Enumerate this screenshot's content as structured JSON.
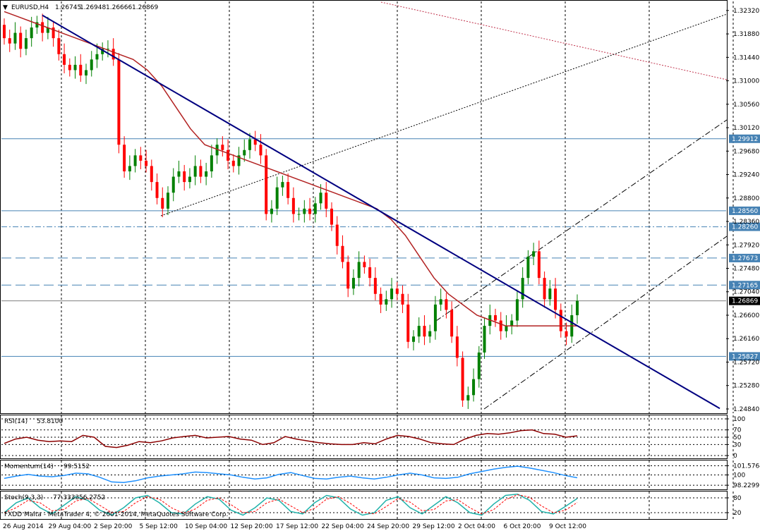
{
  "chart_data": [
    {
      "type": "candlestick",
      "header": {
        "arrow": "▼",
        "symbol": "EURUSD,H4",
        "ohlc": [
          "1.26745",
          "1.26948",
          "1.26666",
          "1.26869"
        ]
      },
      "ylim": [
        1.2476,
        1.3249
      ],
      "y_ticks": [
        "1.32320",
        "1.31880",
        "1.31440",
        "1.31000",
        "1.30560",
        "1.30120",
        "1.29680",
        "1.29240",
        "1.28800",
        "1.28360",
        "1.27920",
        "1.27480",
        "1.27040",
        "1.26600",
        "1.26160",
        "1.25720",
        "1.25280",
        "1.24840"
      ],
      "x_ticks": [
        "26 Aug 2014",
        "29 Aug 04:00",
        "2 Sep 20:00",
        "5 Sep 12:00",
        "10 Sep 04:00",
        "12 Sep 20:00",
        "17 Sep 12:00",
        "22 Sep 04:00",
        "24 Sep 20:00",
        "29 Sep 12:00",
        "2 Oct 04:00",
        "6 Oct 20:00",
        "9 Oct 12:00"
      ],
      "current_price": "1.26869",
      "horizontal_levels": [
        {
          "value": "1.29912",
          "style": "solid"
        },
        {
          "value": "1.28560",
          "style": "solid"
        },
        {
          "value": "1.28260",
          "style": "dashdot"
        },
        {
          "value": "1.27673",
          "style": "dashed"
        },
        {
          "value": "1.27165",
          "style": "dashed"
        },
        {
          "value": "1.25827",
          "style": "solid"
        }
      ],
      "colors": {
        "bull": "#008000",
        "bear": "#ff0000",
        "ma": "#b22222",
        "trend": "#000080",
        "level": "#4682b4",
        "current": "#808080"
      },
      "candles_close": [
        1.318,
        1.317,
        1.319,
        1.316,
        1.318,
        1.32,
        1.321,
        1.319,
        1.32,
        1.318,
        1.315,
        1.313,
        1.312,
        1.313,
        1.311,
        1.312,
        1.314,
        1.315,
        1.316,
        1.316,
        1.314,
        1.298,
        1.293,
        1.294,
        1.296,
        1.295,
        1.294,
        1.291,
        1.288,
        1.286,
        1.289,
        1.292,
        1.293,
        1.291,
        1.292,
        1.294,
        1.292,
        1.293,
        1.296,
        1.298,
        1.297,
        1.295,
        1.294,
        1.296,
        1.297,
        1.299,
        1.298,
        1.296,
        1.285,
        1.286,
        1.29,
        1.291,
        1.288,
        1.285,
        1.285,
        1.286,
        1.285,
        1.287,
        1.289,
        1.286,
        1.283,
        1.279,
        1.276,
        1.271,
        1.273,
        1.276,
        1.275,
        1.273,
        1.27,
        1.268,
        1.269,
        1.271,
        1.27,
        1.268,
        1.261,
        1.262,
        1.264,
        1.262,
        1.263,
        1.268,
        1.269,
        1.267,
        1.262,
        1.258,
        1.25,
        1.251,
        1.254,
        1.259,
        1.264,
        1.266,
        1.265,
        1.263,
        1.264,
        1.265,
        1.269,
        1.273,
        1.277,
        1.278,
        1.273,
        1.269,
        1.271,
        1.267,
        1.263,
        1.262,
        1.266,
        1.2687
      ],
      "ma_values": [
        1.323,
        1.322,
        1.321,
        1.32,
        1.319,
        1.318,
        1.317,
        1.316,
        1.315,
        1.314,
        1.312,
        1.309,
        1.305,
        1.301,
        1.298,
        1.297,
        1.296,
        1.295,
        1.294,
        1.293,
        1.292,
        1.291,
        1.29,
        1.289,
        1.288,
        1.287,
        1.286,
        1.284,
        1.281,
        1.277,
        1.273,
        1.27,
        1.268,
        1.266,
        1.265,
        1.264,
        1.264,
        1.264,
        1.264,
        1.264,
        1.264
      ],
      "trend_line": {
        "from": [
          0,
          1.3223
        ],
        "to": [
          1.0,
          1.2485
        ]
      }
    },
    {
      "type": "line",
      "name": "RSI(14)",
      "last": "53.8100",
      "ylim": [
        0,
        100
      ],
      "y_ticks": [
        "100",
        "70",
        "50",
        "30",
        "0"
      ],
      "values": [
        33,
        45,
        50,
        42,
        38,
        40,
        38,
        55,
        50,
        25,
        22,
        28,
        38,
        35,
        40,
        48,
        52,
        55,
        48,
        50,
        52,
        45,
        42,
        30,
        35,
        52,
        45,
        40,
        35,
        32,
        30,
        30,
        35,
        32,
        45,
        55,
        52,
        45,
        35,
        32,
        30,
        45,
        55,
        60,
        58,
        62,
        68,
        70,
        60,
        58,
        50,
        53.81
      ]
    },
    {
      "type": "line",
      "name": "Momentum(14)",
      "last": "99.5152",
      "ylim": [
        98.0,
        102.0
      ],
      "y_ticks": [
        "101.5764",
        "100",
        "98.2299"
      ],
      "values": [
        99.4,
        99.8,
        100.1,
        99.8,
        99.7,
        99.9,
        100.3,
        100.2,
        99.6,
        98.8,
        98.7,
        99.0,
        99.5,
        99.8,
        100.0,
        100.2,
        100.5,
        100.4,
        100.2,
        100.0,
        99.6,
        99.3,
        99.5,
        100.1,
        100.4,
        99.9,
        99.4,
        99.3,
        99.6,
        99.8,
        99.5,
        99.3,
        99.6,
        100.0,
        100.3,
        100.0,
        99.5,
        99.4,
        99.6,
        100.2,
        100.6,
        101.0,
        101.3,
        101.5,
        101.2,
        100.8,
        100.4,
        99.9,
        99.5152
      ]
    },
    {
      "type": "line",
      "name": "Stoch(9,3,3)",
      "last": [
        "77.3333",
        "56.2752"
      ],
      "ylim": [
        0,
        100
      ],
      "y_ticks": [
        "80",
        "20"
      ],
      "values": [
        20,
        60,
        80,
        40,
        15,
        50,
        85,
        70,
        30,
        10,
        40,
        80,
        90,
        60,
        20,
        15,
        55,
        85,
        75,
        30,
        10,
        40,
        80,
        70,
        25,
        15,
        60,
        90,
        80,
        35,
        10,
        20,
        70,
        85,
        40,
        15,
        50,
        85,
        60,
        20,
        10,
        55,
        90,
        95,
        70,
        25,
        15,
        45,
        77.33
      ]
    }
  ],
  "footer": {
    "copyright": "FXDD Malta - MetaTrader 4, © 2001-2014, MetaQuotes Software Corp."
  }
}
